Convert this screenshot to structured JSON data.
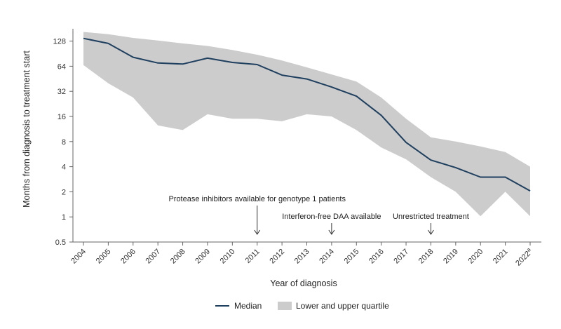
{
  "chart_data": {
    "type": "line",
    "xlabel": "Year of diagnosis",
    "ylabel": "Months from diagnosis to treatment start",
    "y_scale": "log2",
    "ylim": [
      0.5,
      180
    ],
    "y_ticks": [
      0.5,
      1,
      2,
      4,
      8,
      16,
      32,
      64,
      128
    ],
    "y_tick_labels": [
      "0.5",
      "1",
      "2",
      "4",
      "8",
      "16",
      "32",
      "64",
      "128"
    ],
    "categories": [
      "2004",
      "2005",
      "2006",
      "2007",
      "2008",
      "2009",
      "2010",
      "2011",
      "2012",
      "2013",
      "2014",
      "2015",
      "2016",
      "2017",
      "2018",
      "2019",
      "2020",
      "2021",
      "2022"
    ],
    "tick_labels": [
      "2004",
      "2005",
      "2006",
      "2007",
      "2008",
      "2009",
      "2010",
      "2011",
      "2012",
      "2013",
      "2014",
      "2015",
      "2016",
      "2017",
      "2018",
      "2019",
      "2020",
      "2021",
      "2022a"
    ],
    "series": [
      {
        "name": "Median",
        "type": "line",
        "values": [
          138,
          120,
          82,
          70,
          68,
          80,
          71,
          67,
          50,
          45,
          36,
          28,
          16.5,
          7.8,
          4.8,
          3.9,
          3.0,
          3.0,
          2.05
        ]
      },
      {
        "name": "Lower and upper quartile",
        "type": "band",
        "lower": [
          66,
          40,
          27,
          12.5,
          11,
          17,
          15,
          15,
          14,
          17,
          16,
          11,
          6.8,
          4.9,
          3.0,
          2.0,
          1.02,
          2.0,
          1.02
        ],
        "upper": [
          165,
          155,
          140,
          130,
          120,
          112,
          100,
          88,
          75,
          62,
          51,
          42,
          27,
          15,
          9,
          8,
          7,
          6,
          4
        ]
      }
    ],
    "annotations": [
      {
        "text": "Protease inhibitors available for genotype 1 patients",
        "x": "2011"
      },
      {
        "text": "Interferon-free DAA available",
        "x": "2014"
      },
      {
        "text": "Unrestricted treatment",
        "x": "2018"
      }
    ],
    "legend": {
      "position": "bottom-center",
      "items": [
        "Median",
        "Lower and upper quartile"
      ]
    }
  },
  "colors": {
    "median": "#1f3f5f",
    "band": "#cccccc",
    "axis": "#666666"
  }
}
